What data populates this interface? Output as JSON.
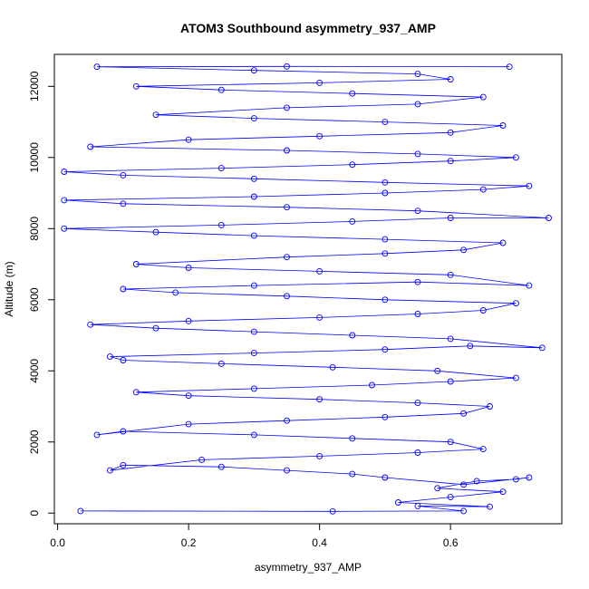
{
  "chart_data": {
    "type": "scatter",
    "title": "ATOM3 Southbound asymmetry_937_AMP",
    "xlabel": "asymmetry_937_AMP",
    "ylabel": "Altitude (m)",
    "xlim": [
      -0.005,
      0.77
    ],
    "ylim": [
      -300,
      12900
    ],
    "x_ticks": [
      0.0,
      0.2,
      0.4,
      0.6
    ],
    "x_tick_labels": [
      "0.0",
      "0.2",
      "0.4",
      "0.6"
    ],
    "y_ticks": [
      0,
      2000,
      4000,
      6000,
      8000,
      10000,
      12000
    ],
    "y_tick_labels": [
      "0",
      "2000",
      "4000",
      "6000",
      "8000",
      "10000",
      "12000"
    ],
    "grid": false,
    "legend": "none",
    "marker": "open-circle",
    "connected": true,
    "series_color": "#0000ff",
    "series": [
      {
        "points": [
          [
            0.035,
            60
          ],
          [
            0.42,
            50
          ],
          [
            0.62,
            60
          ],
          [
            0.55,
            200
          ],
          [
            0.66,
            180
          ],
          [
            0.52,
            300
          ],
          [
            0.6,
            450
          ],
          [
            0.68,
            600
          ],
          [
            0.58,
            700
          ],
          [
            0.64,
            900
          ],
          [
            0.7,
            950
          ],
          [
            0.72,
            1000
          ],
          [
            0.62,
            800
          ],
          [
            0.5,
            1000
          ],
          [
            0.45,
            1100
          ],
          [
            0.35,
            1200
          ],
          [
            0.25,
            1300
          ],
          [
            0.1,
            1350
          ],
          [
            0.08,
            1200
          ],
          [
            0.22,
            1500
          ],
          [
            0.4,
            1600
          ],
          [
            0.55,
            1700
          ],
          [
            0.65,
            1800
          ],
          [
            0.6,
            2000
          ],
          [
            0.45,
            2100
          ],
          [
            0.3,
            2200
          ],
          [
            0.1,
            2300
          ],
          [
            0.06,
            2200
          ],
          [
            0.2,
            2500
          ],
          [
            0.35,
            2600
          ],
          [
            0.5,
            2700
          ],
          [
            0.62,
            2800
          ],
          [
            0.66,
            3000
          ],
          [
            0.55,
            3100
          ],
          [
            0.4,
            3200
          ],
          [
            0.2,
            3300
          ],
          [
            0.12,
            3400
          ],
          [
            0.3,
            3500
          ],
          [
            0.48,
            3600
          ],
          [
            0.6,
            3700
          ],
          [
            0.7,
            3800
          ],
          [
            0.58,
            4000
          ],
          [
            0.42,
            4100
          ],
          [
            0.25,
            4200
          ],
          [
            0.1,
            4300
          ],
          [
            0.08,
            4400
          ],
          [
            0.3,
            4500
          ],
          [
            0.5,
            4600
          ],
          [
            0.63,
            4700
          ],
          [
            0.74,
            4650
          ],
          [
            0.6,
            4900
          ],
          [
            0.45,
            5000
          ],
          [
            0.3,
            5100
          ],
          [
            0.15,
            5200
          ],
          [
            0.05,
            5300
          ],
          [
            0.2,
            5400
          ],
          [
            0.4,
            5500
          ],
          [
            0.55,
            5600
          ],
          [
            0.65,
            5700
          ],
          [
            0.7,
            5900
          ],
          [
            0.5,
            6000
          ],
          [
            0.35,
            6100
          ],
          [
            0.18,
            6200
          ],
          [
            0.1,
            6300
          ],
          [
            0.3,
            6400
          ],
          [
            0.55,
            6500
          ],
          [
            0.72,
            6400
          ],
          [
            0.6,
            6700
          ],
          [
            0.4,
            6800
          ],
          [
            0.2,
            6900
          ],
          [
            0.12,
            7000
          ],
          [
            0.35,
            7200
          ],
          [
            0.5,
            7300
          ],
          [
            0.62,
            7400
          ],
          [
            0.68,
            7600
          ],
          [
            0.5,
            7700
          ],
          [
            0.3,
            7800
          ],
          [
            0.15,
            7900
          ],
          [
            0.01,
            8000
          ],
          [
            0.25,
            8100
          ],
          [
            0.45,
            8200
          ],
          [
            0.6,
            8300
          ],
          [
            0.75,
            8300
          ],
          [
            0.55,
            8500
          ],
          [
            0.35,
            8600
          ],
          [
            0.1,
            8700
          ],
          [
            0.01,
            8800
          ],
          [
            0.3,
            8900
          ],
          [
            0.5,
            9000
          ],
          [
            0.65,
            9100
          ],
          [
            0.72,
            9200
          ],
          [
            0.5,
            9300
          ],
          [
            0.3,
            9400
          ],
          [
            0.1,
            9500
          ],
          [
            0.01,
            9600
          ],
          [
            0.25,
            9700
          ],
          [
            0.45,
            9800
          ],
          [
            0.6,
            9900
          ],
          [
            0.7,
            10000
          ],
          [
            0.55,
            10100
          ],
          [
            0.35,
            10200
          ],
          [
            0.05,
            10300
          ],
          [
            0.2,
            10500
          ],
          [
            0.4,
            10600
          ],
          [
            0.6,
            10700
          ],
          [
            0.68,
            10900
          ],
          [
            0.5,
            11000
          ],
          [
            0.3,
            11100
          ],
          [
            0.15,
            11200
          ],
          [
            0.35,
            11400
          ],
          [
            0.55,
            11500
          ],
          [
            0.65,
            11700
          ],
          [
            0.45,
            11800
          ],
          [
            0.25,
            11900
          ],
          [
            0.12,
            12000
          ],
          [
            0.4,
            12100
          ],
          [
            0.6,
            12200
          ],
          [
            0.55,
            12350
          ],
          [
            0.3,
            12450
          ],
          [
            0.06,
            12550
          ],
          [
            0.35,
            12560
          ],
          [
            0.69,
            12550
          ]
        ]
      }
    ]
  }
}
